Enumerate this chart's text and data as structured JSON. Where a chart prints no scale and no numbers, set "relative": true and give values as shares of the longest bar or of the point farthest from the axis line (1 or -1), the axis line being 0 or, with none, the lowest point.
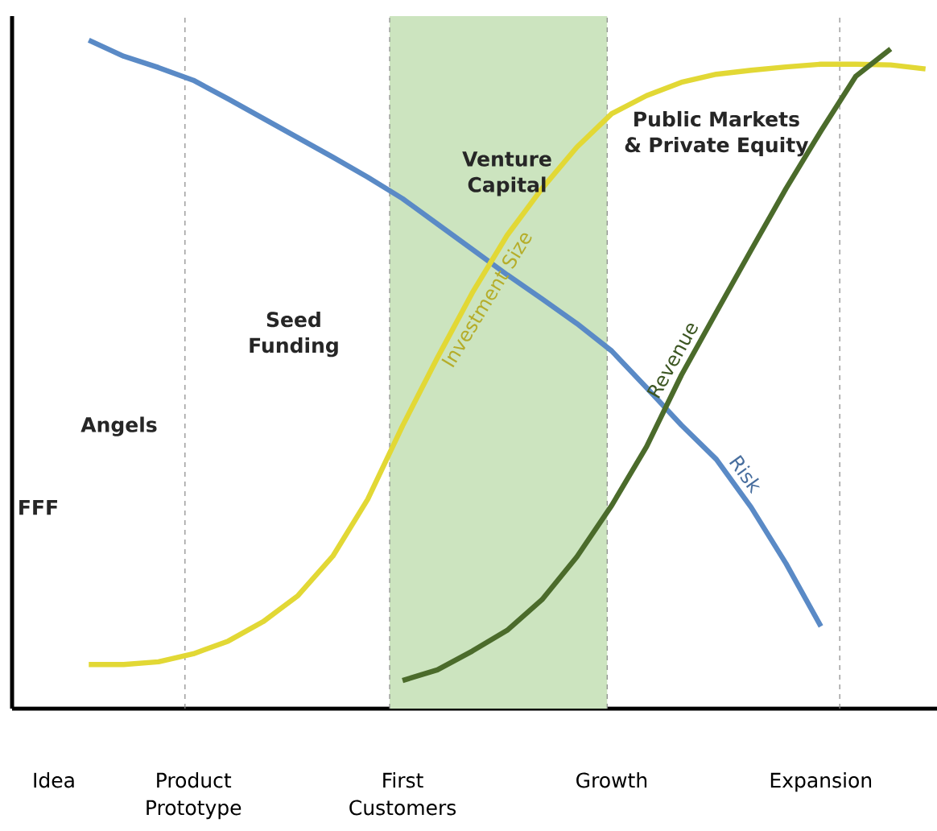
{
  "chart_data": {
    "type": "line",
    "relative": true,
    "categories": [
      "Idea",
      null,
      null,
      null,
      "Product Prototype",
      null,
      null,
      null,
      null,
      null,
      "First Customers",
      null,
      null,
      null,
      null,
      null,
      "Growth",
      null,
      null,
      null,
      null,
      null,
      "Expansion",
      null,
      null,
      null
    ],
    "tick_labels": "x",
    "series": [
      {
        "name": "Risk",
        "color": "#5a8ac6",
        "values": [
          null,
          1.0,
          0.976,
          0.959,
          0.94,
          0.912,
          0.883,
          0.854,
          0.825,
          0.795,
          0.763,
          0.725,
          0.687,
          0.649,
          0.613,
          0.576,
          0.535,
          0.48,
          0.424,
          0.373,
          0.301,
          0.217,
          0.123,
          null,
          null,
          null
        ]
      },
      {
        "name": "Investment Size",
        "color": "#e2d835",
        "values": [
          null,
          0.066,
          0.066,
          0.07,
          0.082,
          0.101,
          0.13,
          0.169,
          0.228,
          0.313,
          0.423,
          0.525,
          0.622,
          0.708,
          0.778,
          0.84,
          0.89,
          0.917,
          0.937,
          0.949,
          0.955,
          0.96,
          0.964,
          0.964,
          0.963,
          0.957
        ]
      },
      {
        "name": "Revenue",
        "color": "#4b6b2b",
        "values": [
          null,
          null,
          null,
          null,
          null,
          null,
          null,
          null,
          null,
          null,
          0.042,
          0.058,
          0.086,
          0.117,
          0.163,
          0.227,
          0.304,
          0.392,
          0.499,
          0.593,
          0.686,
          0.778,
          0.864,
          0.946,
          0.987,
          null
        ]
      }
    ],
    "annotations": [
      "FFF",
      "Angels",
      "Seed Funding",
      "Venture Capital",
      "Public Markets & Private Equity"
    ]
  }
}
